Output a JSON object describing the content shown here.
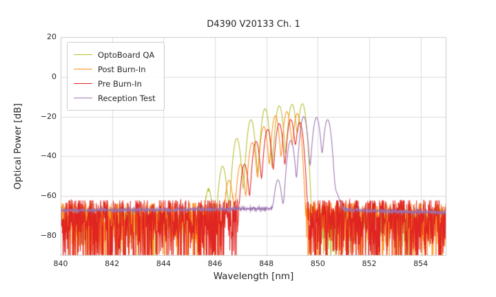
{
  "chart_data": {
    "type": "line",
    "title": "D4390 V20133 Ch. 1",
    "xlabel": "Wavelength [nm]",
    "ylabel": "Optical Power [dB]",
    "xlim": [
      840,
      855
    ],
    "ylim": [
      -90,
      20
    ],
    "xticks": [
      840,
      842,
      844,
      846,
      848,
      850,
      852,
      854
    ],
    "yticks": [
      -80,
      -60,
      -40,
      -20,
      0,
      20
    ],
    "grid": true,
    "grid_color": "#dddddd",
    "spine_color": "#cccccc",
    "legend_position": "upper-left",
    "series": [
      {
        "name": "OptoBoard QA",
        "color": "#b5bd2a",
        "seed": 11,
        "noise": {
          "type": "spiky",
          "scale": 0.55
        },
        "floor": [
          [
            840,
            -69.5
          ],
          [
            844.8,
            -69.3
          ],
          [
            845.8,
            -67.5
          ],
          [
            846.4,
            -66.8
          ],
          [
            849.6,
            -67.0
          ],
          [
            850.1,
            -69.0
          ],
          [
            855,
            -69.3
          ]
        ],
        "peak_width": 0.1,
        "peaks": [
          [
            845.75,
            -57
          ],
          [
            846.3,
            -45
          ],
          [
            846.85,
            -31
          ],
          [
            847.4,
            -21.5
          ],
          [
            847.95,
            -16
          ],
          [
            848.5,
            -14.5
          ],
          [
            849.0,
            -13.8
          ],
          [
            849.4,
            -13.5
          ]
        ]
      },
      {
        "name": "Post Burn-In",
        "color": "#ff8c1a",
        "seed": 22,
        "noise": {
          "type": "spiky",
          "scale": 1.0
        },
        "floor": [
          [
            840,
            -69.0
          ],
          [
            846.3,
            -68.5
          ],
          [
            849.5,
            -68.5
          ],
          [
            855,
            -69.0
          ]
        ],
        "peak_width": 0.095,
        "peaks": [
          [
            846.55,
            -52
          ],
          [
            847.0,
            -44
          ],
          [
            847.45,
            -33
          ],
          [
            847.9,
            -25
          ],
          [
            848.35,
            -19.5
          ],
          [
            848.8,
            -17.5
          ],
          [
            849.2,
            -18.5
          ]
        ]
      },
      {
        "name": "Pre Burn-In",
        "color": "#e02421",
        "seed": 33,
        "noise": {
          "type": "spiky",
          "scale": 1.25
        },
        "floor": [
          [
            840,
            -68.5
          ],
          [
            855,
            -68.5
          ]
        ],
        "peak_width": 0.095,
        "peaks": [
          [
            847.15,
            -44
          ],
          [
            847.6,
            -32.5
          ],
          [
            848.05,
            -26.5
          ],
          [
            848.5,
            -23.5
          ],
          [
            848.95,
            -21.5
          ],
          [
            849.3,
            -23
          ]
        ]
      },
      {
        "name": "Reception Test",
        "color": "#9b72b0",
        "seed": 44,
        "noise": {
          "type": "smooth",
          "scale": 0.45
        },
        "floor": [
          [
            840,
            -67.2
          ],
          [
            845,
            -66.8
          ],
          [
            848,
            -66.3
          ],
          [
            850.9,
            -66.8
          ],
          [
            852.5,
            -67.6
          ],
          [
            855,
            -68.3
          ]
        ],
        "peak_width": 0.1,
        "peaks": [
          [
            848.45,
            -52
          ],
          [
            848.95,
            -32
          ],
          [
            849.45,
            -20
          ],
          [
            849.95,
            -20.5
          ],
          [
            850.38,
            -21.5
          ],
          [
            850.62,
            -57,
            0.18
          ]
        ]
      }
    ]
  }
}
